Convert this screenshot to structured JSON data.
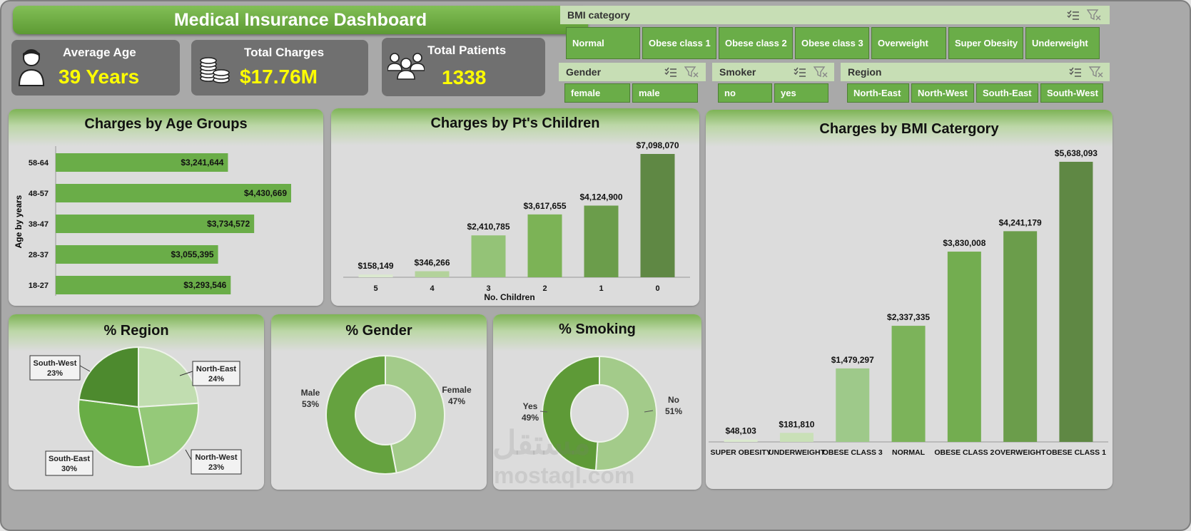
{
  "title": "Medical Insurance Dashboard",
  "kpis": {
    "avg_age": {
      "label": "Average Age",
      "value": "39 Years",
      "icon": "person-icon"
    },
    "total_charges": {
      "label": "Total Charges",
      "value": "$17.76M",
      "icon": "coins-icon"
    },
    "total_patients": {
      "label": "Total Patients",
      "value": "1338",
      "icon": "people-icon"
    }
  },
  "slicers": {
    "bmi": {
      "label": "BMI category",
      "items": [
        "Normal",
        "Obese class 1",
        "Obese class 2",
        "Obese class 3",
        "Overweight",
        "Super Obesity",
        "Underweight"
      ]
    },
    "gender": {
      "label": "Gender",
      "items": [
        "female",
        "male"
      ]
    },
    "smoker": {
      "label": "Smoker",
      "items": [
        "no",
        "yes"
      ]
    },
    "region": {
      "label": "Region",
      "items": [
        "North-East",
        "North-West",
        "South-East",
        "South-West"
      ]
    }
  },
  "colors": {
    "accent": "#6aad48",
    "kpi_value": "#ffff00",
    "kpi_bg": "#707070",
    "slicer_header": "#c7deb5"
  },
  "chart_data": [
    {
      "type": "bar",
      "orientation": "horizontal",
      "title": "Charges by Age Groups",
      "ylabel": "Age by years",
      "categories": [
        "58-64",
        "48-57",
        "38-47",
        "28-37",
        "18-27"
      ],
      "values": [
        3241644,
        4430669,
        3734572,
        3055395,
        3293546
      ],
      "labels": [
        "$3,241,644",
        "$4,430,669",
        "$3,734,572",
        "$3,055,395",
        "$3,293,546"
      ]
    },
    {
      "type": "bar",
      "title": "Charges by Pt's Children",
      "xlabel": "No. Children",
      "categories": [
        "5",
        "4",
        "3",
        "2",
        "1",
        "0"
      ],
      "values": [
        158149,
        346266,
        2410785,
        3617655,
        4124900,
        7098070
      ],
      "labels": [
        "$158,149",
        "$346,266",
        "$2,410,785",
        "$3,617,655",
        "$4,124,900",
        "$7,098,070"
      ]
    },
    {
      "type": "bar",
      "title": "Charges by BMI Catergory",
      "categories": [
        "SUPER OBESITY",
        "UNDERWEIGHT",
        "OBESE CLASS 3",
        "NORMAL",
        "OBESE CLASS 2",
        "OVERWEIGHT",
        "OBESE CLASS 1"
      ],
      "values": [
        48103,
        181810,
        1479297,
        2337335,
        3830008,
        4241179,
        5638093
      ],
      "labels": [
        "$48,103",
        "$181,810",
        "$1,479,297",
        "$2,337,335",
        "$3,830,008",
        "$4,241,179",
        "$5,638,093"
      ]
    },
    {
      "type": "pie",
      "title": "% Region",
      "categories": [
        "North-East",
        "North-West",
        "South-East",
        "South-West"
      ],
      "values": [
        24,
        23,
        30,
        23
      ],
      "labels": [
        "24%",
        "23%",
        "30%",
        "23%"
      ]
    },
    {
      "type": "pie",
      "donut": true,
      "title": "% Gender",
      "categories": [
        "Female",
        "Male"
      ],
      "values": [
        47,
        53
      ],
      "labels": [
        "47%",
        "53%"
      ]
    },
    {
      "type": "pie",
      "donut": true,
      "title": "% Smoking",
      "categories": [
        "No",
        "Yes"
      ],
      "values": [
        51,
        49
      ],
      "labels": [
        "51%",
        "49%"
      ]
    }
  ],
  "watermark": {
    "line1": "مستقل",
    "line2": "mostaql.com"
  }
}
